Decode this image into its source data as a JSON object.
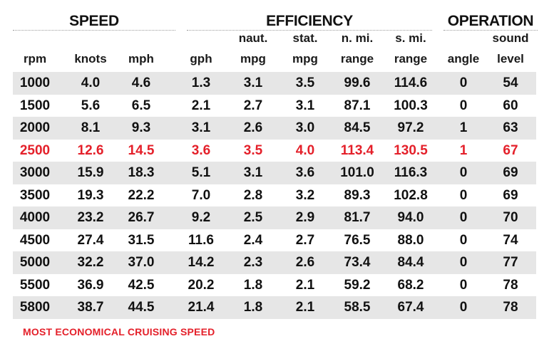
{
  "groups": {
    "speed": "SPEED",
    "efficiency": "EFFICIENCY",
    "operation": "OPERATION"
  },
  "headers": {
    "rpm": [
      "",
      "rpm"
    ],
    "knots": [
      "",
      "knots"
    ],
    "mph": [
      "",
      "mph"
    ],
    "gph": [
      "",
      "gph"
    ],
    "naut_mpg": [
      "naut.",
      "mpg"
    ],
    "stat_mpg": [
      "stat.",
      "mpg"
    ],
    "n_range": [
      "n. mi.",
      "range"
    ],
    "s_range": [
      "s. mi.",
      "range"
    ],
    "angle": [
      "",
      "angle"
    ],
    "sound": [
      "sound",
      "level"
    ]
  },
  "rows": [
    [
      "1000",
      "4.0",
      "4.6",
      "1.3",
      "3.1",
      "3.5",
      "99.6",
      "114.6",
      "0",
      "54"
    ],
    [
      "1500",
      "5.6",
      "6.5",
      "2.1",
      "2.7",
      "3.1",
      "87.1",
      "100.3",
      "0",
      "60"
    ],
    [
      "2000",
      "8.1",
      "9.3",
      "3.1",
      "2.6",
      "3.0",
      "84.5",
      "97.2",
      "1",
      "63"
    ],
    [
      "2500",
      "12.6",
      "14.5",
      "3.6",
      "3.5",
      "4.0",
      "113.4",
      "130.5",
      "1",
      "67"
    ],
    [
      "3000",
      "15.9",
      "18.3",
      "5.1",
      "3.1",
      "3.6",
      "101.0",
      "116.3",
      "0",
      "69"
    ],
    [
      "3500",
      "19.3",
      "22.2",
      "7.0",
      "2.8",
      "3.2",
      "89.3",
      "102.8",
      "0",
      "69"
    ],
    [
      "4000",
      "23.2",
      "26.7",
      "9.2",
      "2.5",
      "2.9",
      "81.7",
      "94.0",
      "0",
      "70"
    ],
    [
      "4500",
      "27.4",
      "31.5",
      "11.6",
      "2.4",
      "2.7",
      "76.5",
      "88.0",
      "0",
      "74"
    ],
    [
      "5000",
      "32.2",
      "37.0",
      "14.2",
      "2.3",
      "2.6",
      "73.4",
      "84.4",
      "0",
      "77"
    ],
    [
      "5500",
      "36.9",
      "42.5",
      "20.2",
      "1.8",
      "2.1",
      "59.2",
      "68.2",
      "0",
      "78"
    ],
    [
      "5800",
      "38.7",
      "44.5",
      "21.4",
      "1.8",
      "2.1",
      "58.5",
      "67.4",
      "0",
      "78"
    ]
  ],
  "highlight_row_rpm": "2500",
  "highlight_color": "#e4202a",
  "shade_color": "#e6e6e6",
  "footnote": "MOST ECONOMICAL CRUISING SPEED"
}
